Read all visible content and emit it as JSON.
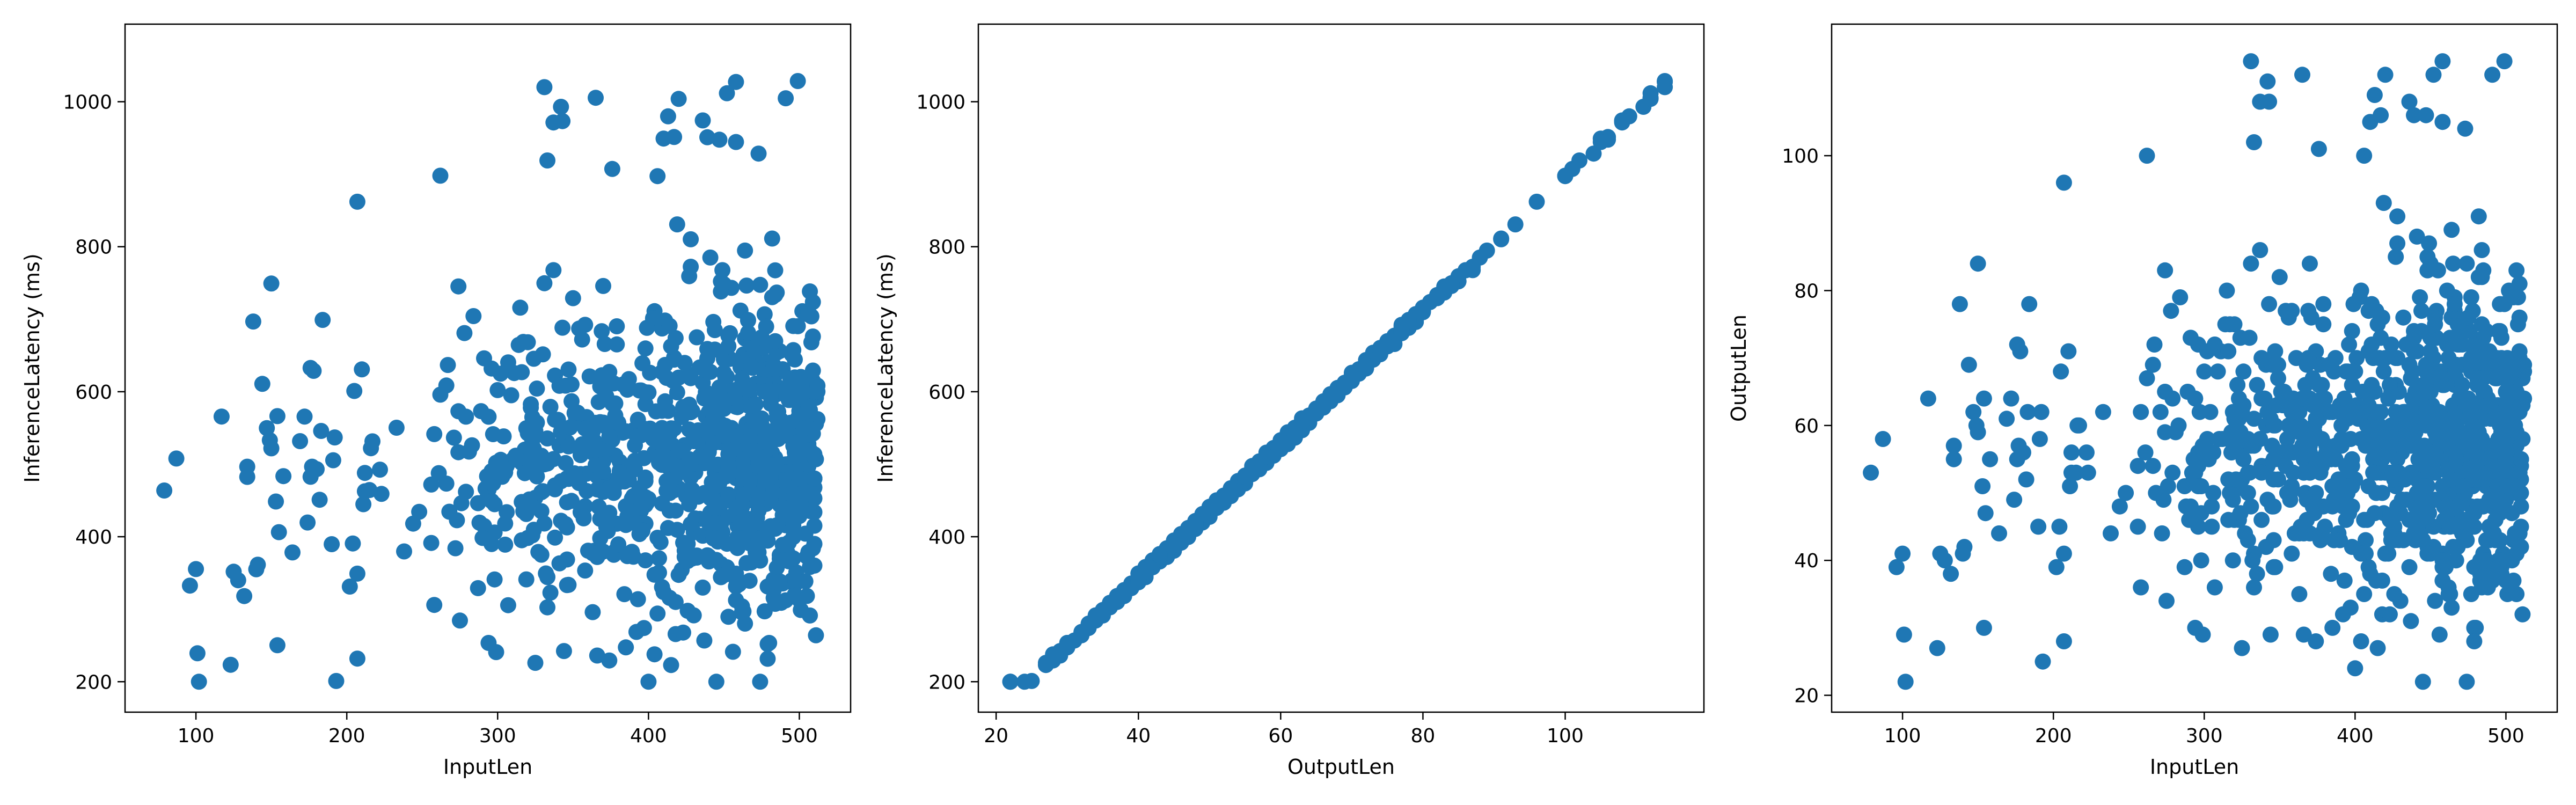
{
  "chart_data": [
    {
      "type": "scatter",
      "xlabel": "InputLen",
      "ylabel": "InferenceLatency (ms)",
      "xlim": [
        53,
        534
      ],
      "ylim": [
        158,
        1107
      ],
      "xticks": [
        100,
        200,
        300,
        400,
        500
      ],
      "yticks": [
        200,
        400,
        600,
        800,
        1000
      ],
      "grid": false,
      "color": "#1f77b4",
      "marker": "circle",
      "point_count_estimate": 1000,
      "seed": 11
    },
    {
      "type": "scatter",
      "xlabel": "OutputLen",
      "ylabel": "InferenceLatency (ms)",
      "xlim": [
        17.5,
        119.5
      ],
      "ylim": [
        158,
        1107
      ],
      "xticks": [
        20,
        40,
        60,
        80,
        100
      ],
      "yticks": [
        200,
        400,
        600,
        800,
        1000
      ],
      "grid": false,
      "color": "#1f77b4",
      "marker": "circle",
      "point_count_estimate": 1000,
      "seed": 23
    },
    {
      "type": "scatter",
      "xlabel": "InputLen",
      "ylabel": "OutputLen",
      "xlim": [
        53,
        534
      ],
      "ylim": [
        17.5,
        119.5
      ],
      "xticks": [
        100,
        200,
        300,
        400,
        500
      ],
      "yticks": [
        20,
        40,
        60,
        80,
        100
      ],
      "grid": false,
      "color": "#1f77b4",
      "marker": "circle",
      "point_count_estimate": 1000,
      "seed": 37
    }
  ]
}
